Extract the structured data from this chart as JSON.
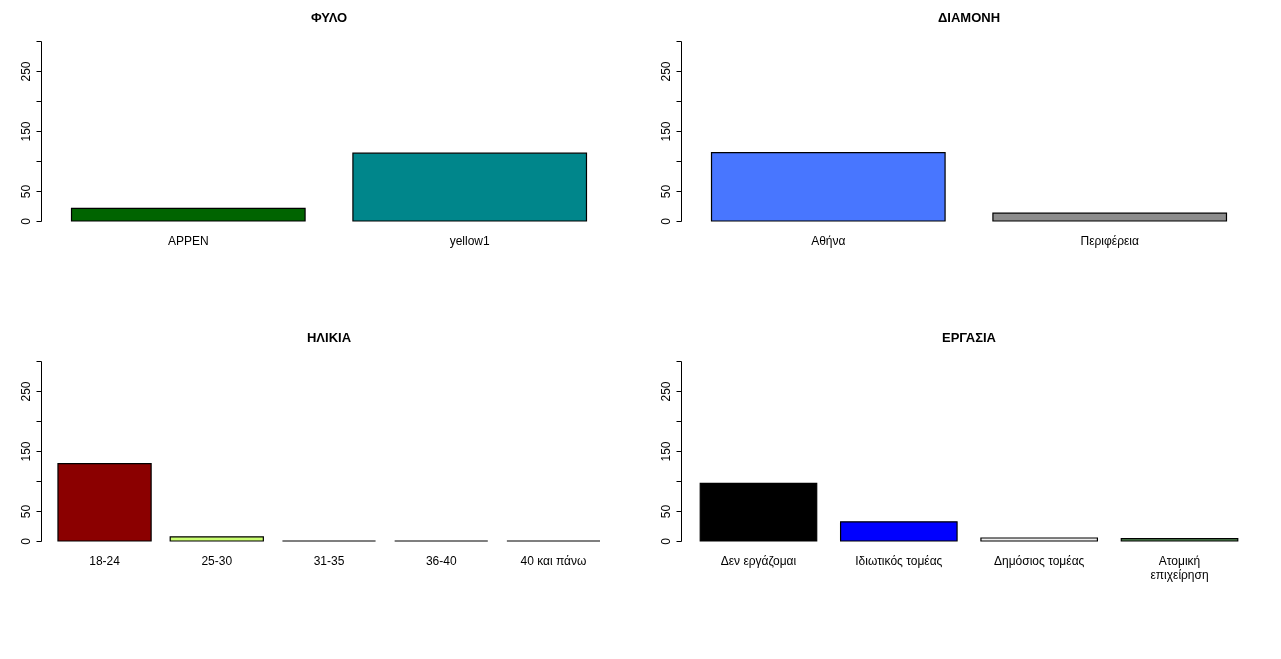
{
  "chart_data": [
    {
      "type": "bar",
      "title": "ΦΥΛΟ",
      "categories": [
        "APPEN",
        "yellow1"
      ],
      "values": [
        21,
        113
      ],
      "colors": [
        "#006400",
        "#00868b"
      ],
      "ylim": [
        0,
        300
      ],
      "yticks": [
        0,
        50,
        {
          "value": 100,
          "label": null
        },
        150,
        {
          "value": 200,
          "label": null
        },
        250,
        {
          "value": 300,
          "label": null
        }
      ]
    },
    {
      "type": "bar",
      "title": "ΔΙΑΜΟΝΗ",
      "categories": [
        "Αθήνα",
        "Περιφέρεια"
      ],
      "values": [
        114,
        13
      ],
      "colors": [
        "#4876ff",
        "#8c8c8c"
      ],
      "ylim": [
        0,
        300
      ],
      "yticks": [
        0,
        50,
        {
          "value": 100,
          "label": null
        },
        150,
        {
          "value": 200,
          "label": null
        },
        250,
        {
          "value": 300,
          "label": null
        }
      ]
    },
    {
      "type": "bar",
      "title": "ΗΛΙΚΙΑ",
      "categories": [
        "18-24",
        "25-30",
        "31-35",
        "36-40",
        "40 και πάνω"
      ],
      "values": [
        129,
        7,
        0,
        0,
        0
      ],
      "colors": [
        "#8b0000",
        "#caff70",
        "#ffffff",
        "#ffffff",
        "#ffffff"
      ],
      "ylim": [
        0,
        300
      ],
      "yticks": [
        0,
        50,
        {
          "value": 100,
          "label": null
        },
        150,
        {
          "value": 200,
          "label": null
        },
        250,
        {
          "value": 300,
          "label": null
        }
      ]
    },
    {
      "type": "bar",
      "title": "ΕΡΓΑΣΙΑ",
      "categories": [
        "Δεν εργάζομαι",
        "Ιδιωτικός τομέας",
        "Δημόσιος τομέας",
        "Ατομική\nεπιχείρηση"
      ],
      "values": [
        96,
        32,
        5,
        4
      ],
      "colors": [
        "#000000",
        "#0000ff",
        "#eeeeee",
        "#548b54"
      ],
      "ylim": [
        0,
        300
      ],
      "yticks": [
        0,
        50,
        {
          "value": 100,
          "label": null
        },
        150,
        {
          "value": 200,
          "label": null
        },
        250,
        {
          "value": 300,
          "label": null
        }
      ]
    }
  ]
}
